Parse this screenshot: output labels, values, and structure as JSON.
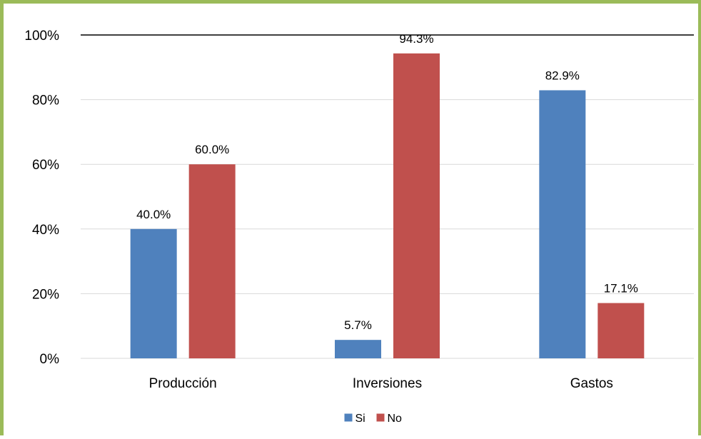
{
  "chart_data": {
    "type": "bar",
    "categories": [
      "Producción",
      "Inversiones",
      "Gastos"
    ],
    "series": [
      {
        "name": "Si",
        "values": [
          40.0,
          5.7,
          82.9
        ],
        "color": "#4f81bd"
      },
      {
        "name": "No",
        "values": [
          60.0,
          94.3,
          17.1
        ],
        "color": "#c0504d"
      }
    ],
    "data_labels": [
      [
        "40.0%",
        "5.7%",
        "82.9%"
      ],
      [
        "60.0%",
        "94.3%",
        "17.1%"
      ]
    ],
    "y_ticks": [
      "0%",
      "20%",
      "40%",
      "60%",
      "80%",
      "100%"
    ],
    "ylim": [
      0,
      100
    ],
    "grid": true,
    "legend_position": "bottom",
    "frame_color": "#9bbb59",
    "grid_color": "#d9d9d9"
  }
}
